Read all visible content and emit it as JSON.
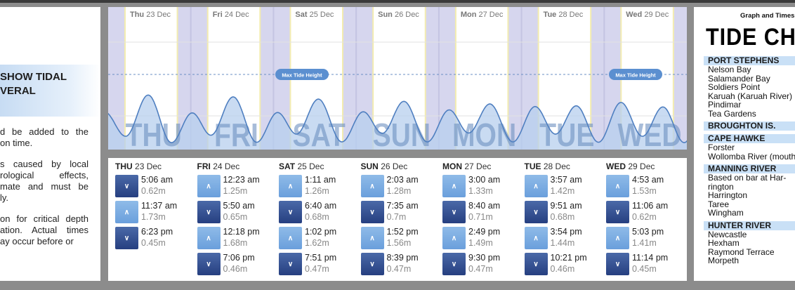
{
  "left": {
    "heading": [
      "SHOW TIDAL",
      "VERAL"
    ],
    "paragraphs": [
      [
        "d be added to the",
        "on time."
      ],
      [
        "s caused by local",
        "rological   effects,",
        "mate and must be",
        "ly."
      ],
      [
        "on for critical depth",
        "ation. Actual times",
        "ay occur before or"
      ]
    ]
  },
  "chart": {
    "day_headers": [
      {
        "day": "Thu",
        "date": "23 Dec"
      },
      {
        "day": "Fri",
        "date": "24 Dec"
      },
      {
        "day": "Sat",
        "date": "25 Dec"
      },
      {
        "day": "Sun",
        "date": "26 Dec"
      },
      {
        "day": "Mon",
        "date": "27 Dec"
      },
      {
        "day": "Tue",
        "date": "28 Dec"
      },
      {
        "day": "Wed",
        "date": "29 Dec"
      }
    ],
    "big_labels": [
      "THU",
      "FRI",
      "SAT",
      "SUN",
      "MON",
      "TUE",
      "WED"
    ],
    "max_tide_label": "Max Tide Height",
    "colors": {
      "night": "#d6d6ee",
      "day": "#ffffff",
      "curve": "#4f7fc0",
      "fill": "#b7cfee",
      "big_label": "#6c8fc0"
    }
  },
  "chart_data": {
    "type": "area",
    "unit": "m",
    "series": [
      {
        "values": [
          [
            "Thu 5:06 am",
            0.62
          ],
          [
            "Thu 11:37 am",
            1.73
          ],
          [
            "Thu 6:23 pm",
            0.45
          ],
          [
            "Fri 12:23 am",
            1.25
          ],
          [
            "Fri 5:50 am",
            0.65
          ],
          [
            "Fri 12:18 pm",
            1.68
          ],
          [
            "Fri 7:06 pm",
            0.46
          ],
          [
            "Sat 1:11 am",
            1.26
          ],
          [
            "Sat 6:40 am",
            0.68
          ],
          [
            "Sat 1:02 pm",
            1.62
          ],
          [
            "Sat 7:51 pm",
            0.47
          ],
          [
            "Sun 2:03 am",
            1.28
          ],
          [
            "Sun 7:35 am",
            0.7
          ],
          [
            "Sun 1:52 pm",
            1.56
          ],
          [
            "Sun 8:39 pm",
            0.47
          ],
          [
            "Mon 3:00 am",
            1.33
          ],
          [
            "Mon 8:40 am",
            0.71
          ],
          [
            "Mon 2:49 pm",
            1.49
          ],
          [
            "Mon 9:30 pm",
            0.47
          ],
          [
            "Tue 3:57 am",
            1.42
          ],
          [
            "Tue 9:51 am",
            0.68
          ],
          [
            "Tue 3:54 pm",
            1.44
          ],
          [
            "Tue 10:21 pm",
            0.46
          ],
          [
            "Wed 4:53 am",
            1.53
          ],
          [
            "Wed 11:06 am",
            0.62
          ],
          [
            "Wed 5:03 pm",
            1.41
          ],
          [
            "Wed 11:14 pm",
            0.45
          ]
        ]
      }
    ]
  },
  "tides": [
    {
      "day": "THU",
      "date": "23 Dec",
      "events": [
        {
          "type": "low",
          "time": "5:06 am",
          "height": "0.62m"
        },
        {
          "type": "high",
          "time": "11:37 am",
          "height": "1.73m"
        },
        {
          "type": "low",
          "time": "6:23 pm",
          "height": "0.45m"
        }
      ]
    },
    {
      "day": "FRI",
      "date": "24 Dec",
      "events": [
        {
          "type": "high",
          "time": "12:23 am",
          "height": "1.25m"
        },
        {
          "type": "low",
          "time": "5:50 am",
          "height": "0.65m"
        },
        {
          "type": "high",
          "time": "12:18 pm",
          "height": "1.68m"
        },
        {
          "type": "low",
          "time": "7:06 pm",
          "height": "0.46m"
        }
      ]
    },
    {
      "day": "SAT",
      "date": "25 Dec",
      "events": [
        {
          "type": "high",
          "time": "1:11 am",
          "height": "1.26m"
        },
        {
          "type": "low",
          "time": "6:40 am",
          "height": "0.68m"
        },
        {
          "type": "high",
          "time": "1:02 pm",
          "height": "1.62m"
        },
        {
          "type": "low",
          "time": "7:51 pm",
          "height": "0.47m"
        }
      ]
    },
    {
      "day": "SUN",
      "date": "26 Dec",
      "events": [
        {
          "type": "high",
          "time": "2:03 am",
          "height": "1.28m"
        },
        {
          "type": "low",
          "time": "7:35 am",
          "height": "0.7m"
        },
        {
          "type": "high",
          "time": "1:52 pm",
          "height": "1.56m"
        },
        {
          "type": "low",
          "time": "8:39 pm",
          "height": "0.47m"
        }
      ]
    },
    {
      "day": "MON",
      "date": "27 Dec",
      "events": [
        {
          "type": "high",
          "time": "3:00 am",
          "height": "1.33m"
        },
        {
          "type": "low",
          "time": "8:40 am",
          "height": "0.71m"
        },
        {
          "type": "high",
          "time": "2:49 pm",
          "height": "1.49m"
        },
        {
          "type": "low",
          "time": "9:30 pm",
          "height": "0.47m"
        }
      ]
    },
    {
      "day": "TUE",
      "date": "28 Dec",
      "events": [
        {
          "type": "high",
          "time": "3:57 am",
          "height": "1.42m"
        },
        {
          "type": "low",
          "time": "9:51 am",
          "height": "0.68m"
        },
        {
          "type": "high",
          "time": "3:54 pm",
          "height": "1.44m"
        },
        {
          "type": "low",
          "time": "10:21 pm",
          "height": "0.46m"
        }
      ]
    },
    {
      "day": "WED",
      "date": "29 Dec",
      "events": [
        {
          "type": "high",
          "time": "4:53 am",
          "height": "1.53m"
        },
        {
          "type": "low",
          "time": "11:06 am",
          "height": "0.62m"
        },
        {
          "type": "high",
          "time": "5:03 pm",
          "height": "1.41m"
        },
        {
          "type": "low",
          "time": "11:14 pm",
          "height": "0.45m"
        }
      ]
    }
  ],
  "right": {
    "subtitle": "Graph and Times",
    "title": "TIDE CHARTS",
    "sections": [
      {
        "header": "PORT STEPHENS",
        "items": [
          "Nelson Bay",
          "Salamander Bay",
          "Soldiers Point",
          "Karuah (Karuah River)",
          "Pindimar",
          "Tea Gardens"
        ]
      },
      {
        "header": "BROUGHTON IS.",
        "items": []
      },
      {
        "header": "CAPE HAWKE",
        "items": [
          "Forster",
          "Wollomba River (mouth)"
        ]
      },
      {
        "header": "MANNING RIVER",
        "items": [
          "Based on bar at Har-",
          "rington",
          "Harrington",
          "Taree",
          "Wingham"
        ]
      },
      {
        "header": "HUNTER RIVER",
        "items": [
          "Newcastle",
          "Hexham",
          "Raymond Terrace",
          "Morpeth"
        ]
      }
    ]
  },
  "icons": {
    "high": "chevron-up-icon",
    "low": "chevron-down-icon"
  }
}
